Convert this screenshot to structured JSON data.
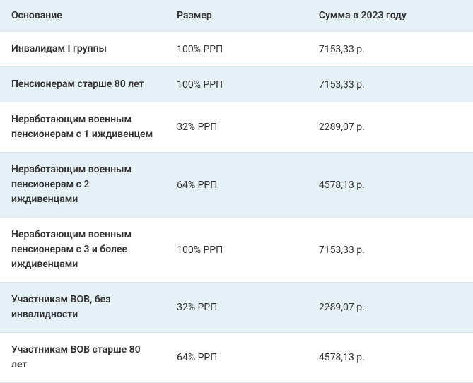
{
  "table": {
    "columns": [
      "Основание",
      "Размер",
      "Сумма в 2023 году"
    ],
    "rows": [
      [
        "Инвалидам I группы",
        "100% РРП",
        "7153,33 р."
      ],
      [
        "Пенсионерам старше 80 лет",
        "100% РРП",
        "7153,33 р."
      ],
      [
        "Неработающим военным пенсионерам с 1 иждивенцем",
        "32% РРП",
        "2289,07 р."
      ],
      [
        "Неработающим военным пенсионерам с 2 иждивенцами",
        "64% РРП",
        "4578,13 р."
      ],
      [
        "Неработающим военным пенсионерам с 3 и более иждивенцами",
        "100% РРП",
        "7153,33 р."
      ],
      [
        "Участникам ВОВ, без инвалидности",
        "32% РРП",
        "2289,07 р."
      ],
      [
        "Участникам ВОВ старше 80 лет",
        "64% РРП",
        "4578,13 р."
      ]
    ],
    "styling": {
      "header_bg": "#e6f1f7",
      "row_even_bg": "#e6f1f7",
      "row_odd_bg": "#ffffff",
      "border_color": "#d8e4eb",
      "text_color": "#333333",
      "font_size": 14,
      "header_font_weight": 600,
      "basis_font_weight": 600,
      "column_widths": [
        "35%",
        "30%",
        "35%"
      ]
    }
  }
}
